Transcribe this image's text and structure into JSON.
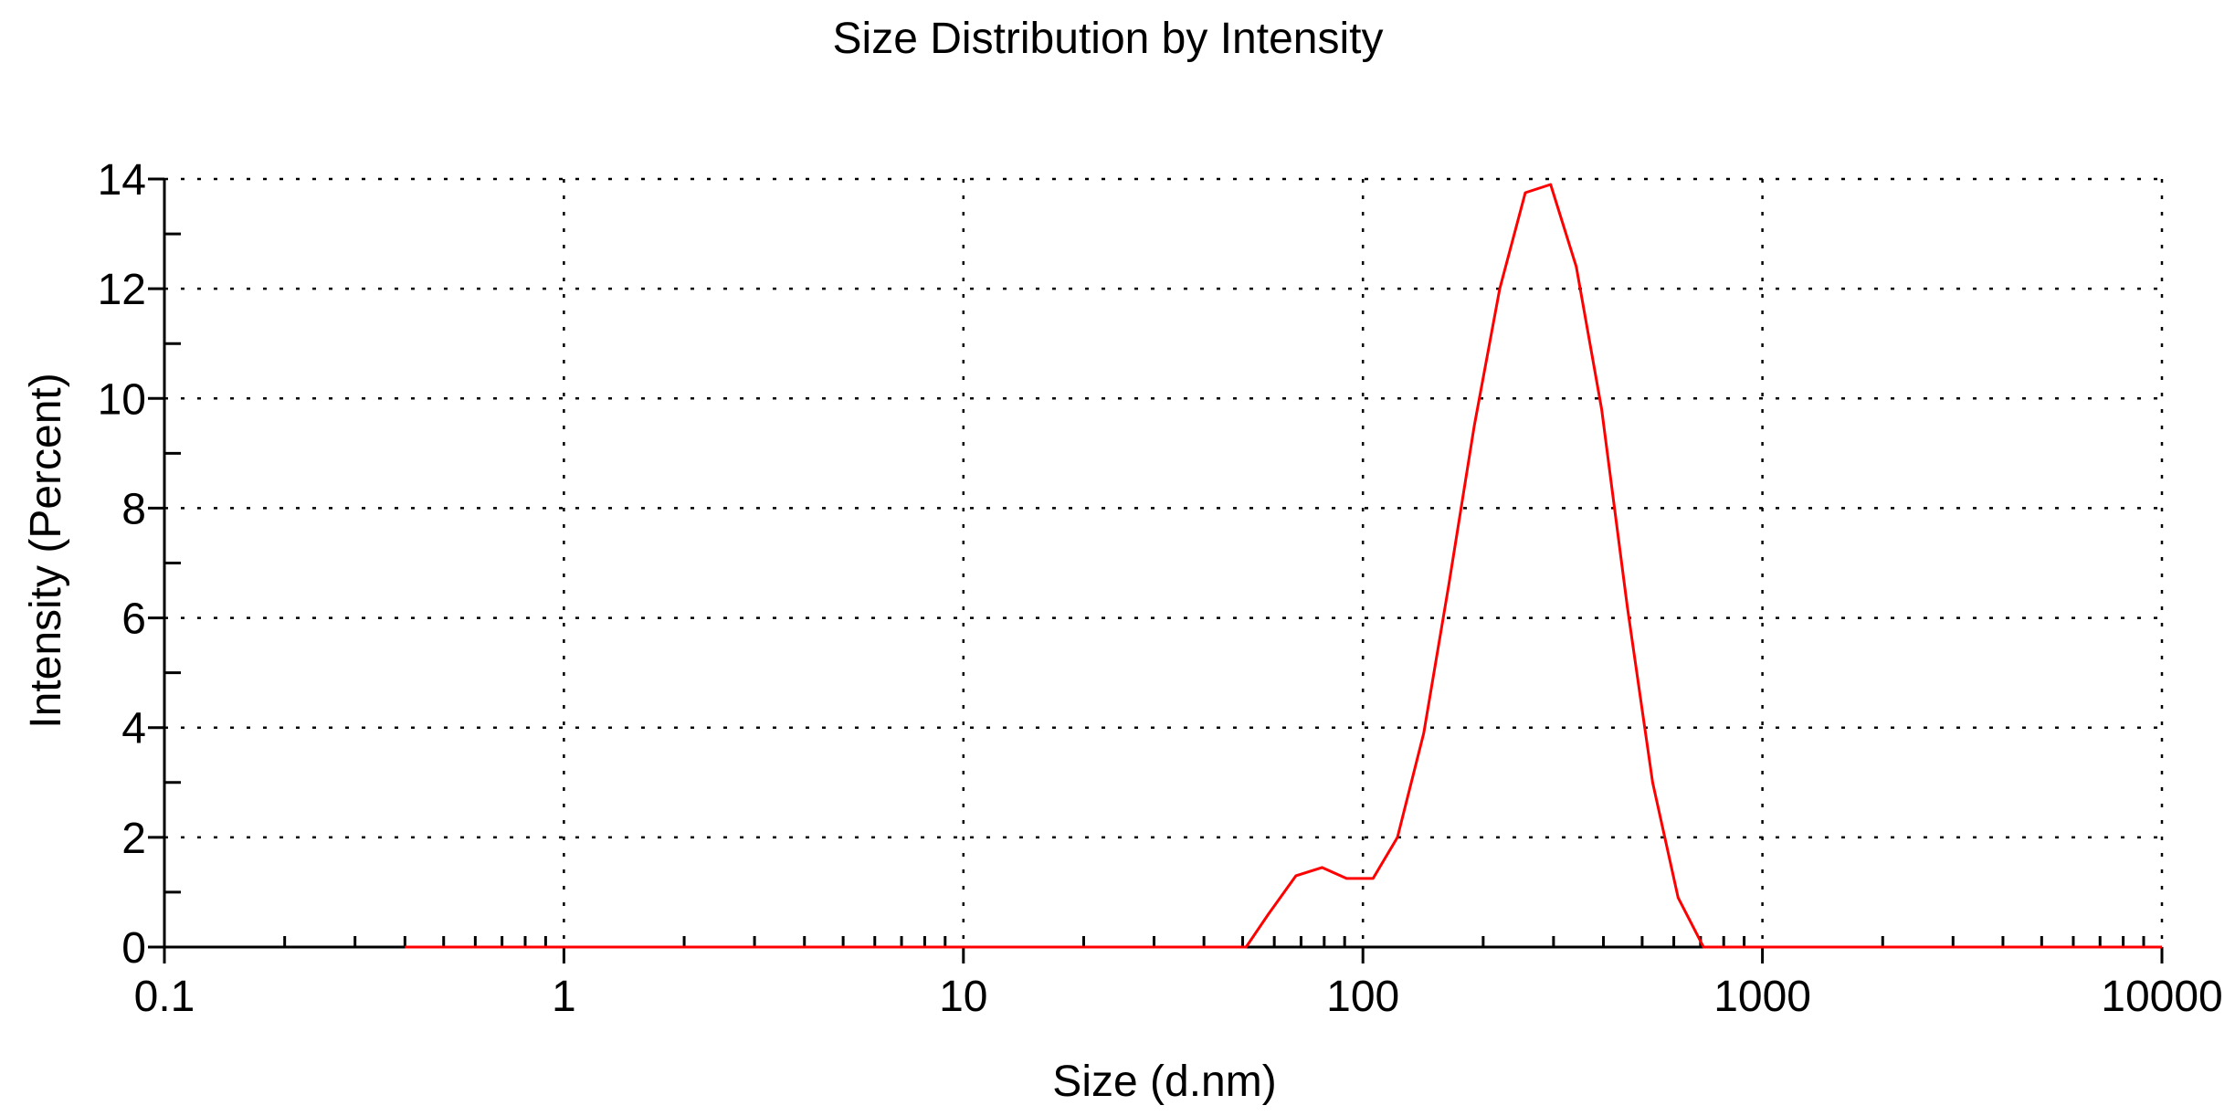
{
  "chart_data": {
    "type": "line",
    "title": "Size Distribution by Intensity",
    "xlabel": "Size (d.nm)",
    "ylabel": "Intensity (Percent)",
    "x_scale": "log",
    "xlim": [
      0.1,
      10000
    ],
    "ylim": [
      0,
      14
    ],
    "x_ticks": [
      0.1,
      1,
      10,
      100,
      1000,
      10000
    ],
    "x_tick_labels": [
      "0.1",
      "1",
      "10",
      "100",
      "1000",
      "10000"
    ],
    "y_ticks": [
      0,
      2,
      4,
      6,
      8,
      10,
      12,
      14
    ],
    "y_tick_labels": [
      "0",
      "2",
      "4",
      "6",
      "8",
      "10",
      "12",
      "14"
    ],
    "y_minor_step": 1,
    "grid": true,
    "colors": {
      "series": "#ff0000",
      "grid": "#000000",
      "axis": "#000000"
    },
    "series": [
      {
        "x": [
          0.4,
          1,
          10,
          30,
          51,
          58,
          68,
          79,
          91,
          106,
          122,
          142,
          164,
          190,
          220,
          255,
          295,
          342,
          396,
          459,
          531,
          615,
          712,
          1000,
          10000
        ],
        "y": [
          0,
          0,
          0,
          0,
          0,
          0.6,
          1.3,
          1.45,
          1.25,
          1.25,
          2.0,
          3.9,
          6.6,
          9.5,
          12.0,
          13.75,
          13.9,
          12.4,
          9.8,
          6.2,
          3.0,
          0.9,
          0,
          0,
          0
        ]
      }
    ]
  }
}
